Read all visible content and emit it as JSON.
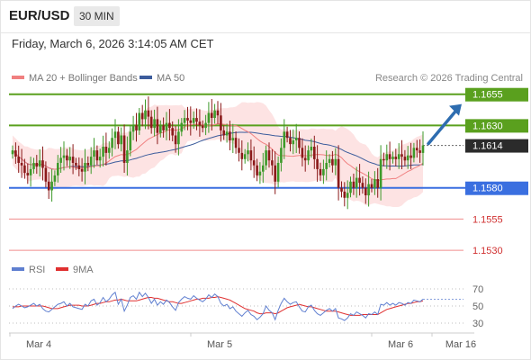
{
  "header": {
    "symbol": "EUR/USD",
    "timeframe": "30 MIN",
    "datetime": "Friday, March 6, 2026 3:14:05 AM CET"
  },
  "legend": {
    "ma20_label": "MA 20 + Bollinger Bands",
    "ma50_label": "MA 50",
    "rsi_label": "RSI",
    "rsi_ma_label": "9MA",
    "credit": "Research © 2026 Trading Central"
  },
  "colors": {
    "resistance": "#5aa01e",
    "support": "#3a6fe0",
    "support_secondary": "#f08d8d",
    "ma20": "#f08080",
    "ma50": "#3c5c9c",
    "bollinger_fill": "#fde3e3",
    "bull_candle": "#3e9a2a",
    "bear_candle": "#8b1a1a",
    "rsi": "#5f7fd0",
    "rsi_ma": "#e03030",
    "current_price_box": "#2b2b2b",
    "arrow": "#2e6db0"
  },
  "chart_data": [
    {
      "type": "candlestick",
      "title": "EUR/USD 30 MIN",
      "series_names": [
        "MA 20 + Bollinger Bands",
        "MA 50"
      ],
      "x_tick_labels": [
        "Mar 4",
        "Mar 5",
        "Mar 6",
        "Mar 16"
      ],
      "ylim": [
        1.1525,
        1.1662
      ],
      "current_price": 1.1614,
      "price_levels": [
        {
          "label": "1.1655",
          "value": 1.1655,
          "kind": "resistance",
          "style": "solid"
        },
        {
          "label": "1.1630",
          "value": 1.163,
          "kind": "resistance",
          "style": "solid"
        },
        {
          "label": "1.1614",
          "value": 1.1614,
          "kind": "current",
          "style": "dotted"
        },
        {
          "label": "1.1580",
          "value": 1.158,
          "kind": "support",
          "style": "solid"
        },
        {
          "label": "1.1555",
          "value": 1.1555,
          "kind": "support_secondary",
          "style": "thin"
        },
        {
          "label": "1.1530",
          "value": 1.153,
          "kind": "support_secondary",
          "style": "thin"
        }
      ],
      "projection": {
        "from": 1.1614,
        "to": 1.165,
        "direction": "up"
      },
      "close": [
        1.161,
        1.1605,
        1.16,
        1.1598,
        1.1592,
        1.159,
        1.1595,
        1.16,
        1.1597,
        1.1602,
        1.1596,
        1.1585,
        1.1578,
        1.1585,
        1.159,
        1.16,
        1.1604,
        1.1606,
        1.1602,
        1.1605,
        1.16,
        1.1598,
        1.1595,
        1.1593,
        1.16,
        1.1598,
        1.1605,
        1.161,
        1.1602,
        1.1605,
        1.1613,
        1.1608,
        1.1612,
        1.162,
        1.1625,
        1.1615,
        1.1622,
        1.16,
        1.161,
        1.1625,
        1.163,
        1.1626,
        1.164,
        1.1635,
        1.1642,
        1.1637,
        1.1628,
        1.1635,
        1.1624,
        1.163,
        1.1626,
        1.1632,
        1.1628,
        1.1622,
        1.1615,
        1.1625,
        1.1632,
        1.1636,
        1.1634,
        1.1632,
        1.1636,
        1.1633,
        1.163,
        1.1628,
        1.1632,
        1.164,
        1.1636,
        1.1642,
        1.1638,
        1.1626,
        1.1622,
        1.1625,
        1.1618,
        1.162,
        1.1612,
        1.1608,
        1.1603,
        1.1607,
        1.161,
        1.1602,
        1.1598,
        1.159,
        1.1593,
        1.1598,
        1.161,
        1.1602,
        1.1598,
        1.1585,
        1.16,
        1.1612,
        1.1625,
        1.162,
        1.1615,
        1.1618,
        1.162,
        1.1612,
        1.1604,
        1.1602,
        1.161,
        1.1613,
        1.1603,
        1.1595,
        1.159,
        1.1595,
        1.16,
        1.1603,
        1.1598,
        1.1603,
        1.158,
        1.1577,
        1.1572,
        1.1576,
        1.1585,
        1.158,
        1.1588,
        1.1584,
        1.158,
        1.1574,
        1.1583,
        1.158,
        1.1587,
        1.158,
        1.1603,
        1.1602,
        1.1607,
        1.1603,
        1.1605,
        1.1603,
        1.1607,
        1.1605,
        1.1602,
        1.1606,
        1.1604,
        1.1612,
        1.161,
        1.1608,
        1.1614
      ]
    },
    {
      "type": "line",
      "title": "RSI",
      "series_names": [
        "RSI",
        "9MA"
      ],
      "y_tick_labels": [
        "70",
        "50",
        "30"
      ],
      "ylim": [
        23,
        77
      ],
      "rsi": [
        47,
        50,
        52,
        50,
        48,
        49,
        51,
        53,
        50,
        52,
        47,
        44,
        43,
        46,
        49,
        52,
        53,
        55,
        50,
        53,
        49,
        48,
        47,
        46,
        52,
        50,
        56,
        58,
        51,
        54,
        60,
        55,
        58,
        63,
        66,
        52,
        58,
        44,
        51,
        60,
        62,
        58,
        66,
        61,
        65,
        60,
        53,
        58,
        51,
        55,
        52,
        57,
        54,
        49,
        45,
        54,
        58,
        61,
        59,
        58,
        62,
        59,
        57,
        55,
        58,
        63,
        60,
        64,
        61,
        53,
        50,
        52,
        47,
        49,
        44,
        41,
        38,
        42,
        45,
        40,
        38,
        34,
        37,
        41,
        50,
        45,
        42,
        34,
        45,
        53,
        59,
        55,
        52,
        54,
        55,
        49,
        44,
        43,
        49,
        51,
        45,
        41,
        39,
        42,
        45,
        47,
        44,
        47,
        36,
        35,
        33,
        36,
        41,
        39,
        43,
        41,
        39,
        36,
        41,
        40,
        43,
        40,
        52,
        51,
        54,
        51,
        53,
        51,
        54,
        53,
        51,
        54,
        53,
        57,
        56,
        55,
        58
      ],
      "rsi_ma": [
        49,
        49,
        49,
        50,
        50,
        50,
        50,
        50,
        50,
        50,
        50,
        49,
        48,
        47,
        47,
        47,
        48,
        49,
        50,
        51,
        51,
        51,
        51,
        50,
        50,
        50,
        51,
        52,
        53,
        53,
        54,
        55,
        55,
        56,
        57,
        57,
        58,
        57,
        56,
        56,
        56,
        56,
        57,
        58,
        59,
        60,
        60,
        59,
        59,
        58,
        57,
        56,
        55,
        55,
        54,
        53,
        53,
        54,
        55,
        56,
        57,
        58,
        58,
        59,
        59,
        59,
        60,
        60,
        61,
        60,
        59,
        58,
        57,
        55,
        53,
        51,
        49,
        47,
        46,
        45,
        44,
        42,
        41,
        41,
        42,
        42,
        42,
        41,
        42,
        44,
        46,
        48,
        49,
        50,
        51,
        52,
        51,
        50,
        49,
        49,
        48,
        47,
        46,
        45,
        44,
        44,
        44,
        44,
        43,
        42,
        41,
        40,
        39,
        39,
        39,
        39,
        40,
        40,
        40,
        40,
        40,
        40,
        42,
        44,
        46,
        47,
        48,
        49,
        50,
        51,
        52,
        53,
        53,
        54,
        55,
        55,
        56
      ]
    }
  ]
}
